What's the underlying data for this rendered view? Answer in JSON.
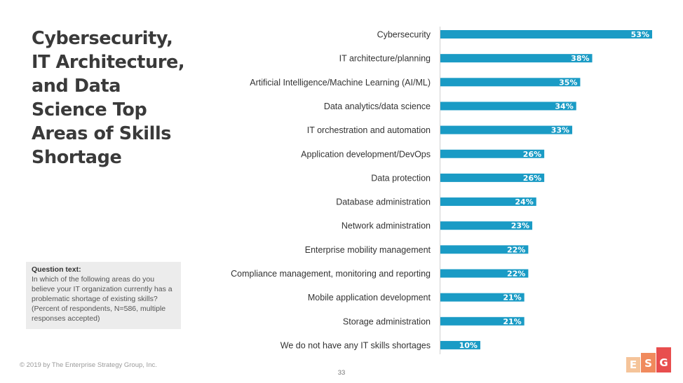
{
  "slide": {
    "title": "Cybersecurity,\nIT Architecture,\nand Data\nScience Top\nAreas of Skills\nShortage",
    "question_heading": "Question text:",
    "question_body": "In which of the following areas do you believe your IT organization currently has a problematic shortage of existing skills? (Percent of respondents, N=586, multiple responses accepted)",
    "copyright": "© 2019 by The Enterprise Strategy Group, Inc.",
    "page_number": "33",
    "logo": {
      "letters": [
        "E",
        "S",
        "G"
      ],
      "colors": [
        "#f5c49a",
        "#f08a5d",
        "#e84e4e"
      ]
    }
  },
  "chart_data": {
    "type": "bar",
    "orientation": "horizontal",
    "categories": [
      "Cybersecurity",
      "IT architecture/planning",
      "Artificial Intelligence/Machine Learning (AI/ML)",
      "Data analytics/data science",
      "IT orchestration and automation",
      "Application development/DevOps",
      "Data protection",
      "Database administration",
      "Network administration",
      "Enterprise mobility management",
      "Compliance management, monitoring and reporting",
      "Mobile application development",
      "Storage administration",
      "We do not have any IT skills shortages"
    ],
    "values": [
      53,
      38,
      35,
      34,
      33,
      26,
      26,
      24,
      23,
      22,
      22,
      21,
      21,
      10
    ],
    "value_labels": [
      "53%",
      "38%",
      "35%",
      "34%",
      "33%",
      "26%",
      "26%",
      "24%",
      "23%",
      "22%",
      "22%",
      "21%",
      "21%",
      "10%"
    ],
    "xlim": [
      0,
      53
    ],
    "bar_color": "#1a9bc5",
    "grid": false,
    "legend": "none"
  }
}
